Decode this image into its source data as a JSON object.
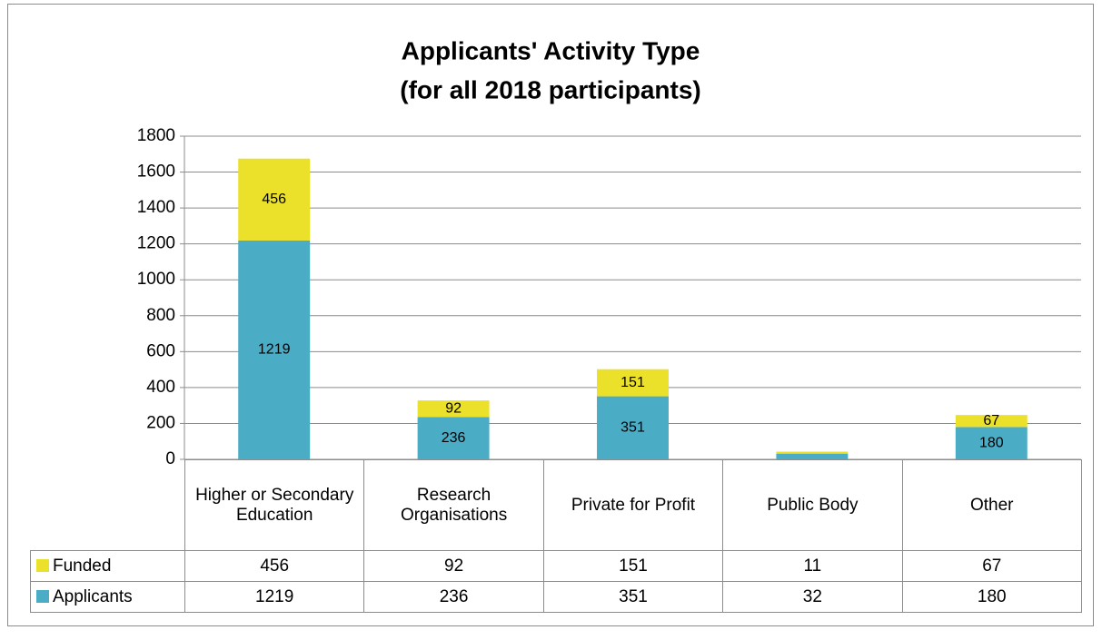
{
  "chart_data": {
    "type": "stacked_bar",
    "title": "Applicants' Activity Type",
    "subtitle": "(for all 2018 participants)",
    "categories": [
      "Higher or Secondary Education",
      "Research Organisations",
      "Private for Profit",
      "Public Body",
      "Other"
    ],
    "series": [
      {
        "name": "Applicants",
        "color": "#4bacc6",
        "values": [
          1219,
          236,
          351,
          32,
          180
        ]
      },
      {
        "name": "Funded",
        "color": "#ebe12a",
        "values": [
          456,
          92,
          151,
          11,
          67
        ]
      }
    ],
    "ylim": [
      0,
      1800
    ],
    "yticks": [
      0,
      200,
      400,
      600,
      800,
      1000,
      1200,
      1400,
      1600,
      1800
    ],
    "grid": true
  }
}
